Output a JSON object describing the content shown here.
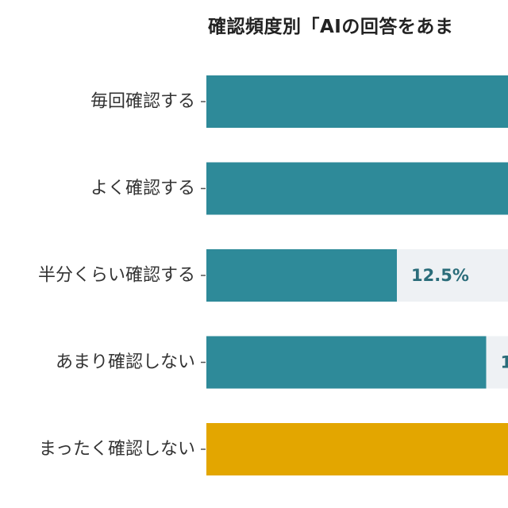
{
  "chart_data": {
    "type": "bar",
    "orientation": "horizontal",
    "title": "確認頻度別「AIの回答をあま",
    "categories": [
      "毎回確認する",
      "よく確認する",
      "半分くらい確認する",
      "あまり確認しない",
      "まったく確認しない"
    ],
    "values": [
      null,
      null,
      12.5,
      null,
      null
    ],
    "value_labels": [
      "",
      "",
      "12.5%",
      "1",
      ""
    ],
    "colors": [
      "#2e8a99",
      "#2e8a99",
      "#2e8a99",
      "#2e8a99",
      "#e3a600"
    ],
    "track_color": "#eef1f4",
    "grid": false,
    "legend": "none"
  }
}
